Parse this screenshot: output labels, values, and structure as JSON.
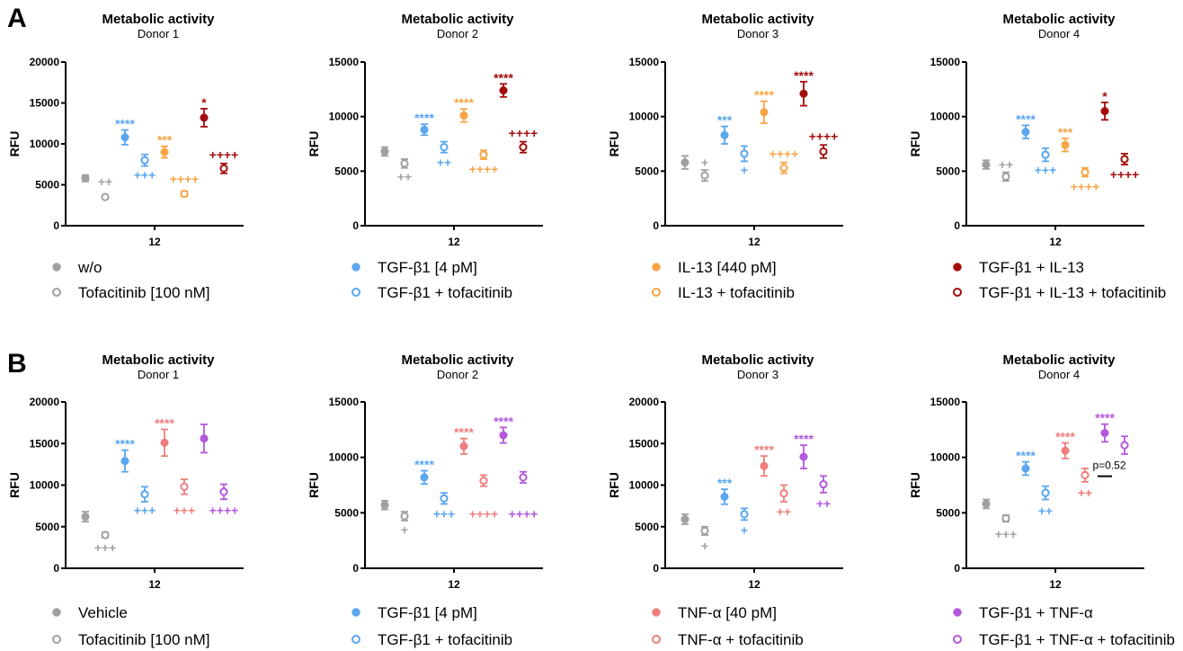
{
  "panels": [
    {
      "letter": "A",
      "legend": [
        {
          "label": "w/o",
          "color": "#a0a0a0",
          "filled": true
        },
        {
          "label": "Tofacitinib [100 nM]",
          "color": "#a0a0a0",
          "filled": false
        },
        {
          "label": "TGF-β1 [4 pM]",
          "color": "#5aa7ef",
          "filled": true
        },
        {
          "label": "TGF-β1 + tofacitinib",
          "color": "#5aa7ef",
          "filled": false
        },
        {
          "label": "IL-13 [440 pM]",
          "color": "#f7a545",
          "filled": true
        },
        {
          "label": "IL-13 + tofacitinib",
          "color": "#f7a545",
          "filled": false
        },
        {
          "label": "TGF-β1 + IL-13",
          "color": "#a30d0d",
          "filled": true
        },
        {
          "label": "TGF-β1 + IL-13 + tofacitinib",
          "color": "#a30d0d",
          "filled": false
        }
      ]
    },
    {
      "letter": "B",
      "legend": [
        {
          "label": "Vehicle",
          "color": "#a0a0a0",
          "filled": true
        },
        {
          "label": "Tofacitinib [100 nM]",
          "color": "#a0a0a0",
          "filled": false
        },
        {
          "label": "TGF-β1 [4 pM]",
          "color": "#5aa7ef",
          "filled": true
        },
        {
          "label": "TGF-β1 + tofacitinib",
          "color": "#5aa7ef",
          "filled": false
        },
        {
          "label": "TNF-α [40 pM]",
          "color": "#f07d7d",
          "filled": true
        },
        {
          "label": "TNF-α + tofacitinib",
          "color": "#f07d7d",
          "filled": false
        },
        {
          "label": "TGF-β1 + TNF-α",
          "color": "#b458dc",
          "filled": true
        },
        {
          "label": "TGF-β1 + TNF-α + tofacitinib",
          "color": "#b458dc",
          "filled": false
        }
      ]
    }
  ],
  "chart_data": [
    {
      "type": "scatter",
      "panel": "A",
      "title": "Metabolic activity",
      "subtitle": "Donor 1",
      "ylabel": "RFU",
      "x_tick": "12",
      "ylim": [
        0,
        20000
      ],
      "yticks": [
        0,
        5000,
        10000,
        15000,
        20000
      ],
      "points": [
        {
          "color": "#a0a0a0",
          "filled": true,
          "y": 5800,
          "err": 400,
          "sig": "",
          "sig_pos": "above",
          "comp": "",
          "comp_y": 0
        },
        {
          "color": "#a0a0a0",
          "filled": false,
          "y": 3500,
          "err": 0,
          "sig": "",
          "sig_pos": "above",
          "comp": "++",
          "comp_y": 5400
        },
        {
          "color": "#5aa7ef",
          "filled": true,
          "y": 10800,
          "err": 900,
          "sig": "****",
          "sig_pos": "above",
          "comp": "",
          "comp_y": 0
        },
        {
          "color": "#5aa7ef",
          "filled": false,
          "y": 8000,
          "err": 700,
          "sig": "",
          "sig_pos": "above",
          "comp": "+++",
          "comp_y": 6200
        },
        {
          "color": "#f7a545",
          "filled": true,
          "y": 9000,
          "err": 700,
          "sig": "***",
          "sig_pos": "above",
          "comp": "",
          "comp_y": 0
        },
        {
          "color": "#f7a545",
          "filled": false,
          "y": 3900,
          "err": 300,
          "sig": "",
          "sig_pos": "above",
          "comp": "++++",
          "comp_y": 5700
        },
        {
          "color": "#a30d0d",
          "filled": true,
          "y": 13200,
          "err": 1100,
          "sig": "*",
          "sig_pos": "above",
          "comp": "",
          "comp_y": 0
        },
        {
          "color": "#a30d0d",
          "filled": false,
          "y": 7000,
          "err": 600,
          "sig": "",
          "sig_pos": "above",
          "comp": "++++",
          "comp_y": 8700
        }
      ]
    },
    {
      "type": "scatter",
      "panel": "A",
      "title": "Metabolic activity",
      "subtitle": "Donor 2",
      "ylabel": "RFU",
      "x_tick": "12",
      "ylim": [
        0,
        15000
      ],
      "yticks": [
        0,
        5000,
        10000,
        15000
      ],
      "points": [
        {
          "color": "#a0a0a0",
          "filled": true,
          "y": 6800,
          "err": 400,
          "sig": "",
          "sig_pos": "above",
          "comp": "",
          "comp_y": 0
        },
        {
          "color": "#a0a0a0",
          "filled": false,
          "y": 5700,
          "err": 400,
          "sig": "",
          "sig_pos": "above",
          "comp": "++",
          "comp_y": 4500
        },
        {
          "color": "#5aa7ef",
          "filled": true,
          "y": 8800,
          "err": 500,
          "sig": "****",
          "sig_pos": "above",
          "comp": "",
          "comp_y": 0
        },
        {
          "color": "#5aa7ef",
          "filled": false,
          "y": 7200,
          "err": 500,
          "sig": "",
          "sig_pos": "above",
          "comp": "++",
          "comp_y": 5800
        },
        {
          "color": "#f7a545",
          "filled": true,
          "y": 10100,
          "err": 600,
          "sig": "****",
          "sig_pos": "above",
          "comp": "",
          "comp_y": 0
        },
        {
          "color": "#f7a545",
          "filled": false,
          "y": 6500,
          "err": 400,
          "sig": "",
          "sig_pos": "above",
          "comp": "++++",
          "comp_y": 5200
        },
        {
          "color": "#a30d0d",
          "filled": true,
          "y": 12400,
          "err": 600,
          "sig": "****",
          "sig_pos": "above",
          "comp": "",
          "comp_y": 0
        },
        {
          "color": "#a30d0d",
          "filled": false,
          "y": 7200,
          "err": 500,
          "sig": "",
          "sig_pos": "above",
          "comp": "++++",
          "comp_y": 8500
        }
      ]
    },
    {
      "type": "scatter",
      "panel": "A",
      "title": "Metabolic activity",
      "subtitle": "Donor 3",
      "ylabel": "RFU",
      "x_tick": "12",
      "ylim": [
        0,
        15000
      ],
      "yticks": [
        0,
        5000,
        10000,
        15000
      ],
      "points": [
        {
          "color": "#a0a0a0",
          "filled": true,
          "y": 5800,
          "err": 600,
          "sig": "",
          "sig_pos": "above",
          "comp": "",
          "comp_y": 0
        },
        {
          "color": "#a0a0a0",
          "filled": false,
          "y": 4600,
          "err": 500,
          "sig": "",
          "sig_pos": "above",
          "comp": "+",
          "comp_y": 5800
        },
        {
          "color": "#5aa7ef",
          "filled": true,
          "y": 8300,
          "err": 800,
          "sig": "***",
          "sig_pos": "above",
          "comp": "",
          "comp_y": 0
        },
        {
          "color": "#5aa7ef",
          "filled": false,
          "y": 6600,
          "err": 700,
          "sig": "",
          "sig_pos": "above",
          "comp": "+",
          "comp_y": 5100
        },
        {
          "color": "#f7a545",
          "filled": true,
          "y": 10400,
          "err": 1000,
          "sig": "****",
          "sig_pos": "above",
          "comp": "",
          "comp_y": 0
        },
        {
          "color": "#f7a545",
          "filled": false,
          "y": 5300,
          "err": 500,
          "sig": "",
          "sig_pos": "above",
          "comp": "++++",
          "comp_y": 6600
        },
        {
          "color": "#a30d0d",
          "filled": true,
          "y": 12100,
          "err": 1100,
          "sig": "****",
          "sig_pos": "above",
          "comp": "",
          "comp_y": 0
        },
        {
          "color": "#a30d0d",
          "filled": false,
          "y": 6800,
          "err": 600,
          "sig": "",
          "sig_pos": "above",
          "comp": "++++",
          "comp_y": 8200
        }
      ]
    },
    {
      "type": "scatter",
      "panel": "A",
      "title": "Metabolic activity",
      "subtitle": "Donor 4",
      "ylabel": "RFU",
      "x_tick": "12",
      "ylim": [
        0,
        15000
      ],
      "yticks": [
        0,
        5000,
        10000,
        15000
      ],
      "points": [
        {
          "color": "#a0a0a0",
          "filled": true,
          "y": 5600,
          "err": 400,
          "sig": "",
          "sig_pos": "above",
          "comp": "",
          "comp_y": 0
        },
        {
          "color": "#a0a0a0",
          "filled": false,
          "y": 4500,
          "err": 400,
          "sig": "",
          "sig_pos": "above",
          "comp": "++",
          "comp_y": 5600
        },
        {
          "color": "#5aa7ef",
          "filled": true,
          "y": 8600,
          "err": 600,
          "sig": "****",
          "sig_pos": "above",
          "comp": "",
          "comp_y": 0
        },
        {
          "color": "#5aa7ef",
          "filled": false,
          "y": 6500,
          "err": 600,
          "sig": "",
          "sig_pos": "above",
          "comp": "+++",
          "comp_y": 5100
        },
        {
          "color": "#f7a545",
          "filled": true,
          "y": 7400,
          "err": 600,
          "sig": "***",
          "sig_pos": "above",
          "comp": "",
          "comp_y": 0
        },
        {
          "color": "#f7a545",
          "filled": false,
          "y": 4900,
          "err": 400,
          "sig": "",
          "sig_pos": "above",
          "comp": "++++",
          "comp_y": 3600
        },
        {
          "color": "#a30d0d",
          "filled": true,
          "y": 10500,
          "err": 800,
          "sig": "*",
          "sig_pos": "above",
          "comp": "",
          "comp_y": 0
        },
        {
          "color": "#a30d0d",
          "filled": false,
          "y": 6100,
          "err": 500,
          "sig": "",
          "sig_pos": "above",
          "comp": "++++",
          "comp_y": 4700
        }
      ]
    },
    {
      "type": "scatter",
      "panel": "B",
      "title": "Metabolic activity",
      "subtitle": "Donor 1",
      "ylabel": "RFU",
      "x_tick": "12",
      "ylim": [
        0,
        20000
      ],
      "yticks": [
        0,
        5000,
        10000,
        15000,
        20000
      ],
      "points": [
        {
          "color": "#a0a0a0",
          "filled": true,
          "y": 6200,
          "err": 600,
          "sig": "",
          "sig_pos": "above",
          "comp": "",
          "comp_y": 0
        },
        {
          "color": "#a0a0a0",
          "filled": false,
          "y": 4000,
          "err": 300,
          "sig": "",
          "sig_pos": "above",
          "comp": "+++",
          "comp_y": 2500
        },
        {
          "color": "#5aa7ef",
          "filled": true,
          "y": 12900,
          "err": 1300,
          "sig": "****",
          "sig_pos": "above",
          "comp": "",
          "comp_y": 0
        },
        {
          "color": "#5aa7ef",
          "filled": false,
          "y": 8900,
          "err": 900,
          "sig": "",
          "sig_pos": "above",
          "comp": "+++",
          "comp_y": 7000
        },
        {
          "color": "#f07d7d",
          "filled": true,
          "y": 15100,
          "err": 1600,
          "sig": "****",
          "sig_pos": "above",
          "comp": "",
          "comp_y": 0
        },
        {
          "color": "#f07d7d",
          "filled": false,
          "y": 9800,
          "err": 900,
          "sig": "",
          "sig_pos": "above",
          "comp": "+++",
          "comp_y": 7000
        },
        {
          "color": "#b458dc",
          "filled": true,
          "y": 15600,
          "err": 1700,
          "sig": "",
          "sig_pos": "above",
          "comp": "",
          "comp_y": 0
        },
        {
          "color": "#b458dc",
          "filled": false,
          "y": 9200,
          "err": 900,
          "sig": "",
          "sig_pos": "above",
          "comp": "++++",
          "comp_y": 7000
        }
      ]
    },
    {
      "type": "scatter",
      "panel": "B",
      "title": "Metabolic activity",
      "subtitle": "Donor 2",
      "ylabel": "RFU",
      "x_tick": "12",
      "ylim": [
        0,
        15000
      ],
      "yticks": [
        0,
        5000,
        10000,
        15000
      ],
      "points": [
        {
          "color": "#a0a0a0",
          "filled": true,
          "y": 5700,
          "err": 400,
          "sig": "",
          "sig_pos": "above",
          "comp": "",
          "comp_y": 0
        },
        {
          "color": "#a0a0a0",
          "filled": false,
          "y": 4700,
          "err": 400,
          "sig": "",
          "sig_pos": "above",
          "comp": "+",
          "comp_y": 3500
        },
        {
          "color": "#5aa7ef",
          "filled": true,
          "y": 8200,
          "err": 600,
          "sig": "****",
          "sig_pos": "above",
          "comp": "",
          "comp_y": 0
        },
        {
          "color": "#5aa7ef",
          "filled": false,
          "y": 6300,
          "err": 500,
          "sig": "",
          "sig_pos": "above",
          "comp": "+++",
          "comp_y": 4900
        },
        {
          "color": "#f07d7d",
          "filled": true,
          "y": 11000,
          "err": 700,
          "sig": "****",
          "sig_pos": "above",
          "comp": "",
          "comp_y": 0
        },
        {
          "color": "#f07d7d",
          "filled": false,
          "y": 7900,
          "err": 500,
          "sig": "",
          "sig_pos": "above",
          "comp": "++++",
          "comp_y": 4900
        },
        {
          "color": "#b458dc",
          "filled": true,
          "y": 12000,
          "err": 700,
          "sig": "****",
          "sig_pos": "above",
          "comp": "",
          "comp_y": 0
        },
        {
          "color": "#b458dc",
          "filled": false,
          "y": 8200,
          "err": 500,
          "sig": "",
          "sig_pos": "above",
          "comp": "++++",
          "comp_y": 4900
        }
      ]
    },
    {
      "type": "scatter",
      "panel": "B",
      "title": "Metabolic activity",
      "subtitle": "Donor 3",
      "ylabel": "RFU",
      "x_tick": "12",
      "ylim": [
        0,
        20000
      ],
      "yticks": [
        0,
        5000,
        10000,
        15000,
        20000
      ],
      "points": [
        {
          "color": "#a0a0a0",
          "filled": true,
          "y": 5900,
          "err": 600,
          "sig": "",
          "sig_pos": "above",
          "comp": "",
          "comp_y": 0
        },
        {
          "color": "#a0a0a0",
          "filled": false,
          "y": 4500,
          "err": 500,
          "sig": "",
          "sig_pos": "above",
          "comp": "+",
          "comp_y": 2700
        },
        {
          "color": "#5aa7ef",
          "filled": true,
          "y": 8600,
          "err": 900,
          "sig": "***",
          "sig_pos": "above",
          "comp": "",
          "comp_y": 0
        },
        {
          "color": "#5aa7ef",
          "filled": false,
          "y": 6500,
          "err": 700,
          "sig": "",
          "sig_pos": "above",
          "comp": "+",
          "comp_y": 4600
        },
        {
          "color": "#f07d7d",
          "filled": true,
          "y": 12300,
          "err": 1200,
          "sig": "****",
          "sig_pos": "above",
          "comp": "",
          "comp_y": 0
        },
        {
          "color": "#f07d7d",
          "filled": false,
          "y": 9000,
          "err": 1000,
          "sig": "",
          "sig_pos": "above",
          "comp": "++",
          "comp_y": 6800
        },
        {
          "color": "#b458dc",
          "filled": true,
          "y": 13400,
          "err": 1400,
          "sig": "****",
          "sig_pos": "above",
          "comp": "",
          "comp_y": 0
        },
        {
          "color": "#b458dc",
          "filled": false,
          "y": 10100,
          "err": 1000,
          "sig": "",
          "sig_pos": "above",
          "comp": "++",
          "comp_y": 7800
        }
      ]
    },
    {
      "type": "scatter",
      "panel": "B",
      "title": "Metabolic activity",
      "subtitle": "Donor 4",
      "ylabel": "RFU",
      "x_tick": "12",
      "ylim": [
        0,
        15000
      ],
      "yticks": [
        0,
        5000,
        10000,
        15000
      ],
      "points": [
        {
          "color": "#a0a0a0",
          "filled": true,
          "y": 5800,
          "err": 400,
          "sig": "",
          "sig_pos": "above",
          "comp": "",
          "comp_y": 0
        },
        {
          "color": "#a0a0a0",
          "filled": false,
          "y": 4500,
          "err": 300,
          "sig": "",
          "sig_pos": "above",
          "comp": "+++",
          "comp_y": 3100
        },
        {
          "color": "#5aa7ef",
          "filled": true,
          "y": 9000,
          "err": 600,
          "sig": "****",
          "sig_pos": "above",
          "comp": "",
          "comp_y": 0
        },
        {
          "color": "#5aa7ef",
          "filled": false,
          "y": 6800,
          "err": 600,
          "sig": "",
          "sig_pos": "above",
          "comp": "++",
          "comp_y": 5200
        },
        {
          "color": "#f07d7d",
          "filled": true,
          "y": 10600,
          "err": 700,
          "sig": "****",
          "sig_pos": "above",
          "comp": "",
          "comp_y": 0
        },
        {
          "color": "#f07d7d",
          "filled": false,
          "y": 8400,
          "err": 600,
          "sig": "",
          "sig_pos": "above",
          "comp": "++",
          "comp_y": 6800
        },
        {
          "color": "#b458dc",
          "filled": true,
          "y": 12200,
          "err": 800,
          "sig": "****",
          "sig_pos": "above",
          "comp": "",
          "comp_y": 0
        },
        {
          "color": "#b458dc",
          "filled": false,
          "y": 11100,
          "err": 800,
          "sig": "",
          "sig_pos": "above",
          "comp": "",
          "comp_y": 0
        }
      ],
      "annotation": {
        "text": "p=0.52",
        "y": 8300
      }
    }
  ]
}
